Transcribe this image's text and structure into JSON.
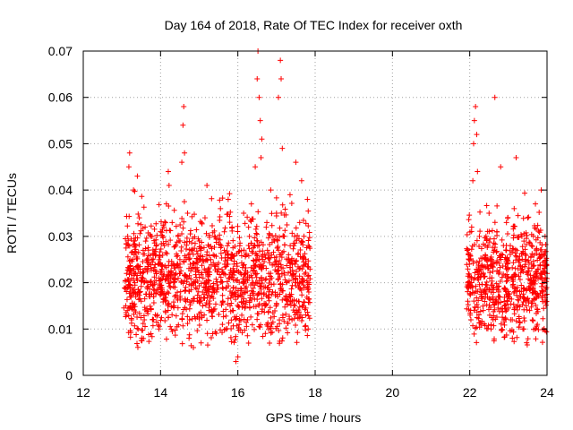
{
  "chart_data": {
    "type": "scatter",
    "title": "Day 164 of 2018, Rate Of TEC Index for receiver oxth",
    "xlabel": "GPS time / hours",
    "ylabel": "ROTI / TECUs",
    "xlim": [
      12,
      24
    ],
    "ylim": [
      0,
      0.07
    ],
    "xticks": [
      12,
      14,
      16,
      18,
      20,
      22,
      24
    ],
    "xtick_labels": [
      "12",
      "14",
      "16",
      "18",
      "20",
      "22",
      "24"
    ],
    "yticks": [
      0,
      0.01,
      0.02,
      0.03,
      0.04,
      0.05,
      0.06,
      0.07
    ],
    "ytick_labels": [
      "0",
      "0.01",
      "0.02",
      "0.03",
      "0.04",
      "0.05",
      "0.06",
      "0.07"
    ],
    "grid": true,
    "marker": "+",
    "color": "#ff0000",
    "series": [
      {
        "name": "ROTI",
        "points": [
          [
            13.1,
            0.015
          ],
          [
            13.12,
            0.022
          ],
          [
            13.15,
            0.03
          ],
          [
            13.18,
            0.045
          ],
          [
            13.2,
            0.048
          ],
          [
            13.22,
            0.018
          ],
          [
            13.25,
            0.012
          ],
          [
            13.28,
            0.025
          ],
          [
            13.3,
            0.04
          ],
          [
            13.33,
            0.02
          ],
          [
            13.36,
            0.028
          ],
          [
            13.4,
            0.043
          ],
          [
            13.42,
            0.01
          ],
          [
            13.45,
            0.034
          ],
          [
            13.48,
            0.022
          ],
          [
            13.5,
            0.016
          ],
          [
            13.55,
            0.027
          ],
          [
            13.58,
            0.012
          ],
          [
            13.6,
            0.032
          ],
          [
            13.65,
            0.019
          ],
          [
            13.7,
            0.024
          ],
          [
            13.75,
            0.009
          ],
          [
            13.78,
            0.03
          ],
          [
            13.82,
            0.017
          ],
          [
            13.88,
            0.026
          ],
          [
            13.92,
            0.013
          ],
          [
            13.96,
            0.021
          ],
          [
            14.0,
            0.031
          ],
          [
            14.05,
            0.018
          ],
          [
            14.1,
            0.028
          ],
          [
            14.15,
            0.037
          ],
          [
            14.2,
            0.044
          ],
          [
            14.22,
            0.041
          ],
          [
            14.25,
            0.02
          ],
          [
            14.3,
            0.033
          ],
          [
            14.35,
            0.015
          ],
          [
            14.4,
            0.022
          ],
          [
            14.45,
            0.03
          ],
          [
            14.5,
            0.025
          ],
          [
            14.55,
            0.046
          ],
          [
            14.58,
            0.054
          ],
          [
            14.6,
            0.058
          ],
          [
            14.62,
            0.048
          ],
          [
            14.65,
            0.019
          ],
          [
            14.7,
            0.035
          ],
          [
            14.75,
            0.012
          ],
          [
            14.8,
            0.027
          ],
          [
            14.85,
            0.006
          ],
          [
            14.9,
            0.023
          ],
          [
            14.95,
            0.016
          ],
          [
            15.0,
            0.029
          ],
          [
            15.05,
            0.007
          ],
          [
            15.1,
            0.021
          ],
          [
            15.15,
            0.034
          ],
          [
            15.2,
            0.041
          ],
          [
            15.25,
            0.014
          ],
          [
            15.3,
            0.025
          ],
          [
            15.35,
            0.009
          ],
          [
            15.4,
            0.03
          ],
          [
            15.45,
            0.018
          ],
          [
            15.5,
            0.023
          ],
          [
            15.55,
            0.036
          ],
          [
            15.6,
            0.011
          ],
          [
            15.65,
            0.027
          ],
          [
            15.7,
            0.019
          ],
          [
            15.75,
            0.038
          ],
          [
            15.8,
            0.015
          ],
          [
            15.85,
            0.032
          ],
          [
            15.9,
            0.024
          ],
          [
            15.95,
            0.003
          ],
          [
            16.0,
            0.004
          ],
          [
            16.05,
            0.028
          ],
          [
            16.1,
            0.017
          ],
          [
            16.15,
            0.035
          ],
          [
            16.2,
            0.022
          ],
          [
            16.25,
            0.012
          ],
          [
            16.3,
            0.03
          ],
          [
            16.35,
            0.037
          ],
          [
            16.4,
            0.02
          ],
          [
            16.45,
            0.045
          ],
          [
            16.5,
            0.064
          ],
          [
            16.52,
            0.07
          ],
          [
            16.55,
            0.06
          ],
          [
            16.58,
            0.055
          ],
          [
            16.6,
            0.047
          ],
          [
            16.62,
            0.051
          ],
          [
            16.65,
            0.026
          ],
          [
            16.7,
            0.015
          ],
          [
            16.75,
            0.033
          ],
          [
            16.8,
            0.022
          ],
          [
            16.85,
            0.04
          ],
          [
            16.9,
            0.018
          ],
          [
            16.95,
            0.029
          ],
          [
            17.0,
            0.035
          ],
          [
            17.05,
            0.06
          ],
          [
            17.1,
            0.068
          ],
          [
            17.12,
            0.064
          ],
          [
            17.15,
            0.049
          ],
          [
            17.2,
            0.03
          ],
          [
            17.25,
            0.017
          ],
          [
            17.3,
            0.025
          ],
          [
            17.35,
            0.039
          ],
          [
            17.4,
            0.012
          ],
          [
            17.45,
            0.028
          ],
          [
            17.5,
            0.046
          ],
          [
            17.55,
            0.02
          ],
          [
            17.6,
            0.033
          ],
          [
            17.65,
            0.042
          ],
          [
            17.7,
            0.015
          ],
          [
            17.75,
            0.024
          ],
          [
            17.8,
            0.038
          ],
          [
            17.82,
            0.01
          ],
          [
            21.95,
            0.016
          ],
          [
            21.98,
            0.025
          ],
          [
            22.0,
            0.02
          ],
          [
            22.03,
            0.012
          ],
          [
            22.05,
            0.032
          ],
          [
            22.08,
            0.042
          ],
          [
            22.1,
            0.05
          ],
          [
            22.12,
            0.055
          ],
          [
            22.15,
            0.058
          ],
          [
            22.18,
            0.052
          ],
          [
            22.2,
            0.044
          ],
          [
            22.25,
            0.03
          ],
          [
            22.3,
            0.022
          ],
          [
            22.35,
            0.014
          ],
          [
            22.4,
            0.028
          ],
          [
            22.45,
            0.019
          ],
          [
            22.5,
            0.035
          ],
          [
            22.55,
            0.01
          ],
          [
            22.6,
            0.024
          ],
          [
            22.65,
            0.06
          ],
          [
            22.7,
            0.031
          ],
          [
            22.75,
            0.018
          ],
          [
            22.8,
            0.045
          ],
          [
            22.85,
            0.026
          ],
          [
            22.9,
            0.015
          ],
          [
            22.95,
            0.033
          ],
          [
            23.0,
            0.021
          ],
          [
            23.05,
            0.028
          ],
          [
            23.1,
            0.012
          ],
          [
            23.15,
            0.036
          ],
          [
            23.2,
            0.047
          ],
          [
            23.25,
            0.023
          ],
          [
            23.3,
            0.017
          ],
          [
            23.35,
            0.03
          ],
          [
            23.4,
            0.01
          ],
          [
            23.45,
            0.025
          ],
          [
            23.5,
            0.034
          ],
          [
            23.55,
            0.014
          ],
          [
            23.6,
            0.028
          ],
          [
            23.65,
            0.02
          ],
          [
            23.7,
            0.037
          ],
          [
            23.75,
            0.011
          ],
          [
            23.8,
            0.026
          ],
          [
            23.85,
            0.04
          ],
          [
            23.9,
            0.018
          ],
          [
            23.95,
            0.03
          ],
          [
            24.0,
            0.022
          ]
        ]
      }
    ],
    "clusters": [
      {
        "x0": 13.05,
        "x1": 17.88,
        "y_mean": 0.021,
        "y_sd": 0.0065,
        "n": 1400
      },
      {
        "x0": 21.92,
        "x1": 24.0,
        "y_mean": 0.021,
        "y_sd": 0.0065,
        "n": 650
      }
    ]
  }
}
